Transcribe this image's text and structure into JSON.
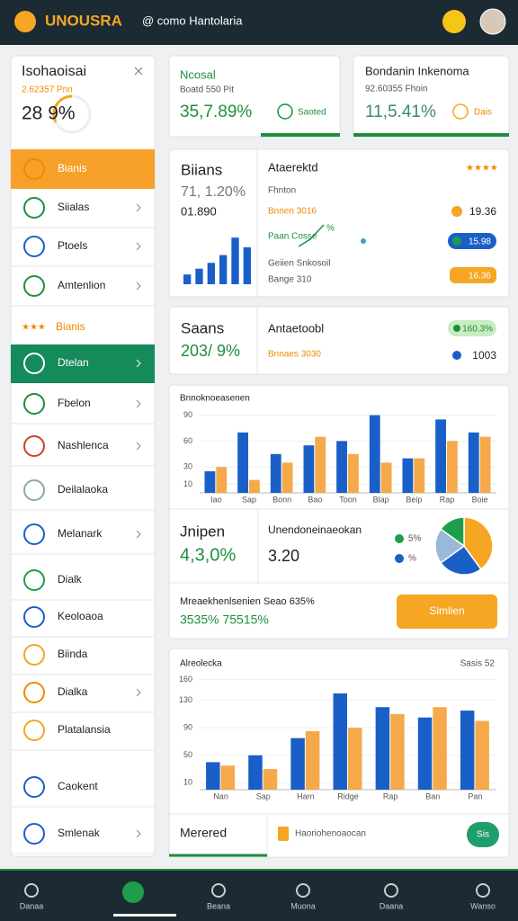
{
  "header": {
    "logo": "UNOUSRA",
    "search": "@ como Hantolaria"
  },
  "sidebar": {
    "title": "Isohaoisai",
    "subtitle": "2.62357 Pnn",
    "value": "28 9%",
    "items": [
      "Bianis",
      "Siialas",
      "Ptoels",
      "Amtenlion",
      "Bianis",
      "Dtelan",
      "Fbelon",
      "Nashlenca",
      "Deilalaoka",
      "Melanark",
      "Dialk",
      "Keoloaoa",
      "Biinda",
      "Dialka",
      "Platalansia",
      "Caokent",
      "Smlenak"
    ]
  },
  "kpis": [
    {
      "title": "Ncosal",
      "subtitle": "Boatd 550 Pit",
      "value": "35,7.89%",
      "badge": "Saoted"
    },
    {
      "title": "Bondanin Inkenoma",
      "subtitle": "92.60355 Fhoin",
      "value": "11,5.41%",
      "badge": "Dais"
    }
  ],
  "panel1": {
    "title": "Biians",
    "value": "71, 1.20%",
    "sub": "01.890",
    "list_title": "Ataerektd",
    "row0": "Fhnton",
    "row1": "Bnnen 3016",
    "row1_value": "19.36",
    "row2": "Paan Cosse",
    "row2_note": "%",
    "row2_value": "15.98",
    "row3": "Geiien Snkosoil",
    "row3_value": "16.36",
    "row4": "Bange 310"
  },
  "panel2": {
    "title": "Saans",
    "value": "203/ 9%",
    "list_title": "Antaetoobl",
    "row1": "Bnnaes 3030",
    "badge": "160.3%",
    "row1_value": "1003"
  },
  "summary": {
    "title": "Jnipen",
    "value": "4,3,0%",
    "title2": "Unendoneinaeokan",
    "value2": "3.20",
    "note": "Mreaekhenlsenien Seao 635%",
    "note_value": "3535% 75515%",
    "button": "Simlien"
  },
  "footer_card": {
    "tab": "Merered",
    "text": "Haoriohenoaocan",
    "button": "Sis"
  },
  "nav": [
    "Danaa",
    "Beana",
    "Muona",
    "Daana",
    "Wanso"
  ],
  "chart_data": [
    {
      "type": "bar",
      "title": "Bnnoknoeasenen",
      "categories": [
        "Iao",
        "Sap",
        "Bonn",
        "Bao",
        "Toon",
        "Blap",
        "Beip",
        "Rap",
        "Boie"
      ],
      "series": [
        {
          "color": "#1a5fc8",
          "values": [
            25,
            70,
            45,
            55,
            60,
            90,
            40,
            85,
            70
          ]
        },
        {
          "color": "#f5a94a",
          "values": [
            30,
            15,
            35,
            65,
            45,
            35,
            40,
            60,
            65
          ]
        }
      ],
      "ylim": [
        0,
        100
      ],
      "yticks": [
        10,
        30,
        60,
        90
      ],
      "grid": true
    },
    {
      "type": "pie",
      "values": [
        40,
        25,
        20,
        15
      ],
      "colors": [
        "#f5a623",
        "#1a5fc8",
        "#9ab8d8",
        "#1e9e4a"
      ],
      "legend": [
        {
          "label": "5%",
          "color": "#1e9e4a"
        },
        {
          "label": "%",
          "color": "#1a5fc8"
        }
      ]
    },
    {
      "type": "bar",
      "title": "Alreolecka",
      "subtitle": "Sasis 52",
      "categories": [
        "Nan",
        "Sap",
        "Harn",
        "Ridge",
        "Rap",
        "Ban",
        "Pan"
      ],
      "series": [
        {
          "color": "#1a5fc8",
          "values": [
            40,
            50,
            75,
            140,
            120,
            105,
            115
          ]
        },
        {
          "color": "#f5a94a",
          "values": [
            35,
            30,
            85,
            90,
            110,
            120,
            100
          ]
        }
      ],
      "ylim": [
        0,
        170
      ],
      "yticks": [
        10,
        50,
        90,
        130,
        160
      ],
      "grid": true
    },
    {
      "type": "bar",
      "values": [
        10,
        16,
        22,
        30,
        48,
        38
      ],
      "color": "#1a5fc8",
      "ylim": [
        0,
        50
      ]
    }
  ]
}
